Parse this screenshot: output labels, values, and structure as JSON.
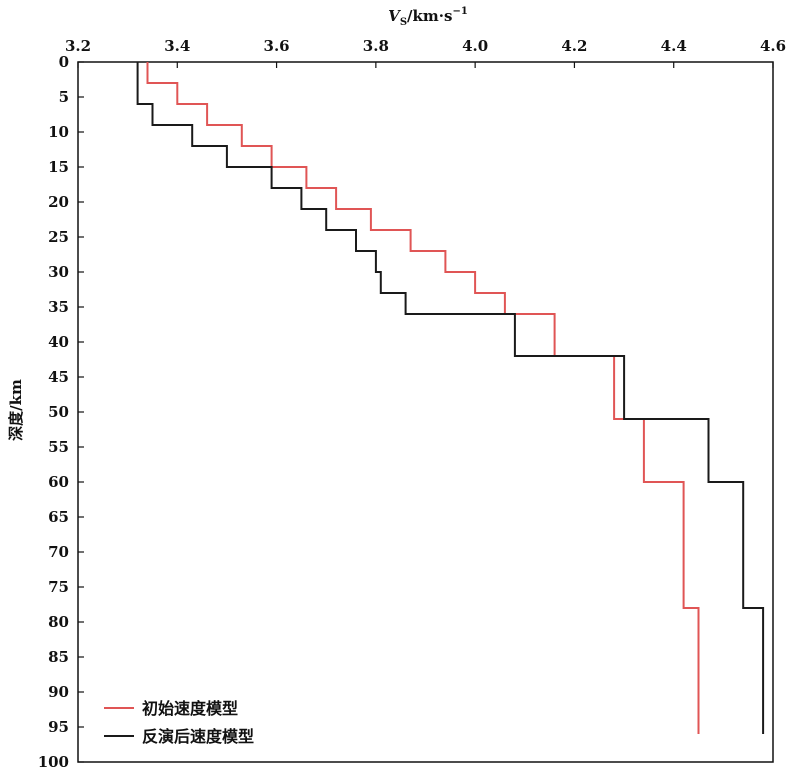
{
  "chart_data": {
    "type": "line",
    "step": true,
    "x_axis_position": "top",
    "y_inverted": true,
    "xlim": [
      3.2,
      4.6
    ],
    "ylim": [
      0,
      100
    ],
    "xticks": [
      "3.2",
      "3.4",
      "3.6",
      "3.8",
      "4.0",
      "4.2",
      "4.4",
      "4.6"
    ],
    "yticks": [
      "0",
      "5",
      "10",
      "15",
      "20",
      "25",
      "30",
      "35",
      "40",
      "45",
      "50",
      "55",
      "60",
      "65",
      "70",
      "75",
      "80",
      "85",
      "90",
      "95",
      "100"
    ],
    "xlabel": {
      "main": "V",
      "sub": "S",
      "unit": "/km·s",
      "sup": "−1"
    },
    "ylabel": "深度/km",
    "grid": false,
    "legend": "bottom-left",
    "series": [
      {
        "name": "初始速度模型",
        "color": "#e05555",
        "points": [
          [
            3.34,
            0
          ],
          [
            3.34,
            3
          ],
          [
            3.4,
            3
          ],
          [
            3.4,
            6
          ],
          [
            3.46,
            6
          ],
          [
            3.46,
            9
          ],
          [
            3.53,
            9
          ],
          [
            3.53,
            12
          ],
          [
            3.59,
            12
          ],
          [
            3.59,
            15
          ],
          [
            3.66,
            15
          ],
          [
            3.66,
            18
          ],
          [
            3.72,
            18
          ],
          [
            3.72,
            21
          ],
          [
            3.79,
            21
          ],
          [
            3.79,
            24
          ],
          [
            3.87,
            24
          ],
          [
            3.87,
            27
          ],
          [
            3.94,
            27
          ],
          [
            3.94,
            30
          ],
          [
            4.0,
            30
          ],
          [
            4.0,
            33
          ],
          [
            4.06,
            33
          ],
          [
            4.06,
            36
          ],
          [
            4.16,
            36
          ],
          [
            4.16,
            42
          ],
          [
            4.28,
            42
          ],
          [
            4.28,
            51
          ],
          [
            4.34,
            51
          ],
          [
            4.34,
            60
          ],
          [
            4.42,
            60
          ],
          [
            4.42,
            78
          ],
          [
            4.45,
            78
          ],
          [
            4.45,
            96
          ]
        ]
      },
      {
        "name": "反演后速度模型",
        "color": "#1a1a1a",
        "points": [
          [
            3.32,
            0
          ],
          [
            3.32,
            6
          ],
          [
            3.35,
            6
          ],
          [
            3.35,
            9
          ],
          [
            3.43,
            9
          ],
          [
            3.43,
            12
          ],
          [
            3.5,
            12
          ],
          [
            3.5,
            15
          ],
          [
            3.59,
            15
          ],
          [
            3.59,
            18
          ],
          [
            3.65,
            18
          ],
          [
            3.65,
            21
          ],
          [
            3.7,
            21
          ],
          [
            3.7,
            24
          ],
          [
            3.76,
            24
          ],
          [
            3.76,
            27
          ],
          [
            3.8,
            27
          ],
          [
            3.8,
            30
          ],
          [
            3.81,
            30
          ],
          [
            3.81,
            33
          ],
          [
            3.86,
            33
          ],
          [
            3.86,
            36
          ],
          [
            4.08,
            36
          ],
          [
            4.08,
            42
          ],
          [
            4.3,
            42
          ],
          [
            4.3,
            51
          ],
          [
            4.47,
            51
          ],
          [
            4.47,
            60
          ],
          [
            4.54,
            60
          ],
          [
            4.54,
            78
          ],
          [
            4.58,
            78
          ],
          [
            4.58,
            96
          ]
        ]
      }
    ]
  }
}
